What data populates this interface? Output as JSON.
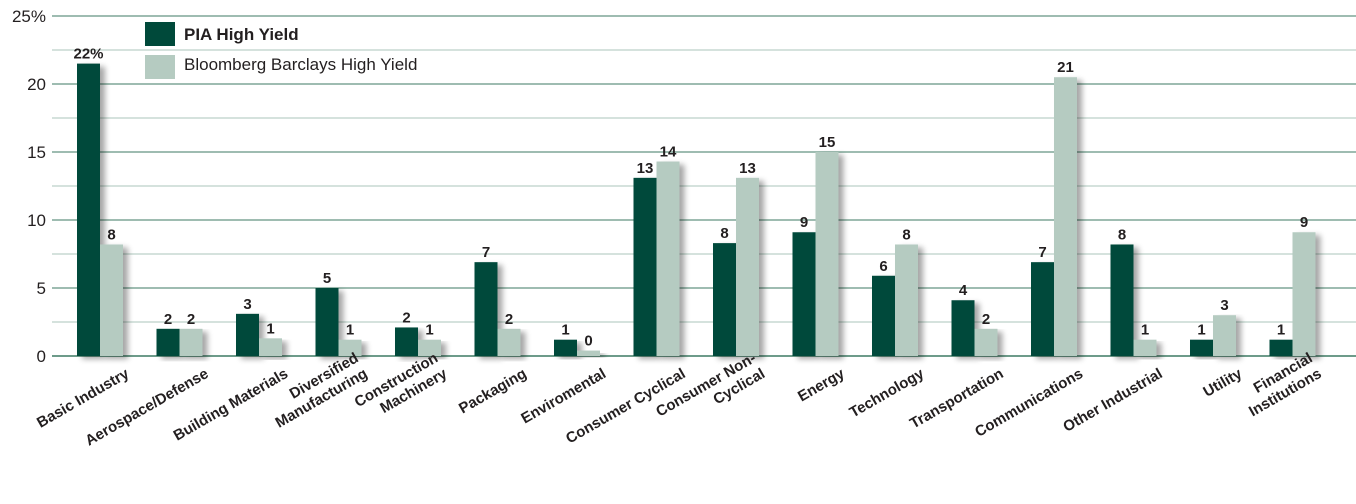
{
  "chart_data": {
    "type": "bar",
    "title": "",
    "xlabel": "",
    "ylabel": "",
    "ylim": [
      0,
      25
    ],
    "yticks": [
      "0",
      "5",
      "10",
      "15",
      "20",
      "25%"
    ],
    "grid": true,
    "legend_position": "top-left",
    "categories": [
      [
        "Basic Industry"
      ],
      [
        "Aerospace/Defense"
      ],
      [
        "Building Materials"
      ],
      [
        "Diversified",
        "Manufacturing"
      ],
      [
        "Construction",
        "Machinery"
      ],
      [
        "Packaging"
      ],
      [
        "Enviromental"
      ],
      [
        "Consumer Cyclical"
      ],
      [
        "Consumer Non-",
        "Cyclical"
      ],
      [
        "Energy"
      ],
      [
        "Technology"
      ],
      [
        "Transportation"
      ],
      [
        "Communications"
      ],
      [
        "Other Industrial"
      ],
      [
        "Utility"
      ],
      [
        "Financial",
        "Institutions"
      ]
    ],
    "series": [
      {
        "name": "PIA High Yield",
        "color": "#00493a",
        "values": [
          21.5,
          2.0,
          3.1,
          5.0,
          2.1,
          6.9,
          1.2,
          13.1,
          8.3,
          9.1,
          5.9,
          4.1,
          6.9,
          8.2,
          1.2,
          1.2
        ],
        "labels": [
          "22%",
          "2",
          "3",
          "5",
          "2",
          "7",
          "1",
          "13",
          "8",
          "9",
          "6",
          "4",
          "7",
          "8",
          "1",
          "1"
        ]
      },
      {
        "name": "Bloomberg Barclays High Yield",
        "color": "#b5cbc1",
        "values": [
          8.2,
          2.0,
          1.3,
          1.2,
          1.2,
          2.0,
          0.4,
          14.3,
          13.1,
          15.0,
          8.2,
          2.0,
          20.5,
          1.2,
          3.0,
          9.1
        ],
        "labels": [
          "8",
          "2",
          "1",
          "1",
          "1",
          "2",
          "0",
          "14",
          "13",
          "15",
          "8",
          "2",
          "21",
          "1",
          "3",
          "9"
        ]
      }
    ]
  }
}
